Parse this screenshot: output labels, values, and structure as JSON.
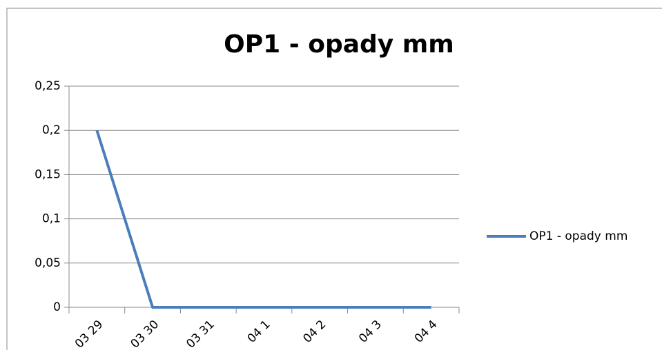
{
  "chart_data": {
    "type": "line",
    "title": "OP1 - opady mm",
    "categories": [
      "03 29",
      "03 30",
      "03 31",
      "04 1",
      "04 2",
      "04 3",
      "04 4"
    ],
    "series": [
      {
        "name": "OP1 - opady mm",
        "color": "#4a7ebb",
        "values": [
          0.2,
          0,
          0,
          0,
          0,
          0,
          0
        ]
      }
    ],
    "ylim": [
      0,
      0.25
    ],
    "yticks": [
      0,
      {
        "value": 0.05,
        "label": "0,05"
      },
      {
        "value": 0.1,
        "label": "0,1"
      },
      {
        "value": 0.15,
        "label": "0,15"
      },
      {
        "value": 0.2,
        "label": "0,2"
      },
      {
        "value": 0.25,
        "label": "0,25"
      }
    ],
    "grid": true,
    "legend": "right"
  }
}
